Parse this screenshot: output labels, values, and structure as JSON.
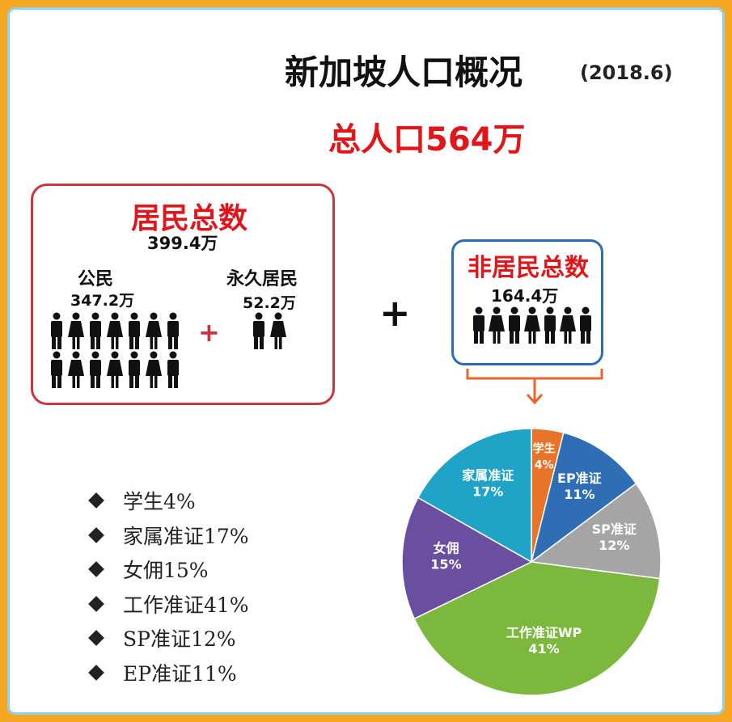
{
  "header": {
    "title": "新加坡人口概况",
    "date": "(2018.6)",
    "total": "总人口564万"
  },
  "residents": {
    "title": "居民总数",
    "total": "399.4万",
    "citizens": {
      "label": "公民",
      "value": "347.2万"
    },
    "pr": {
      "label": "永久居民",
      "value": "52.2万"
    },
    "plus": "+"
  },
  "big_plus": "+",
  "non_residents": {
    "title": "非居民总数",
    "total": "164.4万"
  },
  "legend": [
    "学生4%",
    "家属准证17%",
    "女佣15%",
    "工作准证41%",
    "SP准证12%",
    "EP准证11%"
  ],
  "colors": {
    "red": "#e0161b",
    "box_red": "#c9373c",
    "box_blue": "#2d6cb3",
    "arrow_orange": "#e8652b",
    "student": "#e8742a",
    "ep": "#2f6db5",
    "sp": "#a5a5a5",
    "wp": "#7cb83e",
    "maid": "#6a4fa0",
    "dependant": "#1fa4c8"
  },
  "chart_data": {
    "type": "pie",
    "slices": [
      {
        "label": "学生",
        "pct_label": "4%",
        "value": 4,
        "color": "#e8742a"
      },
      {
        "label": "EP准证",
        "pct_label": "11%",
        "value": 11,
        "color": "#2f6db5"
      },
      {
        "label": "SP准证",
        "pct_label": "12%",
        "value": 12,
        "color": "#a5a5a5"
      },
      {
        "label": "工作准证WP",
        "pct_label": "41%",
        "value": 41,
        "color": "#7cb83e"
      },
      {
        "label": "女佣",
        "pct_label": "15%",
        "value": 15,
        "color": "#6a4fa0"
      },
      {
        "label": "家属准证",
        "pct_label": "17%",
        "value": 17,
        "color": "#1fa4c8"
      }
    ]
  }
}
